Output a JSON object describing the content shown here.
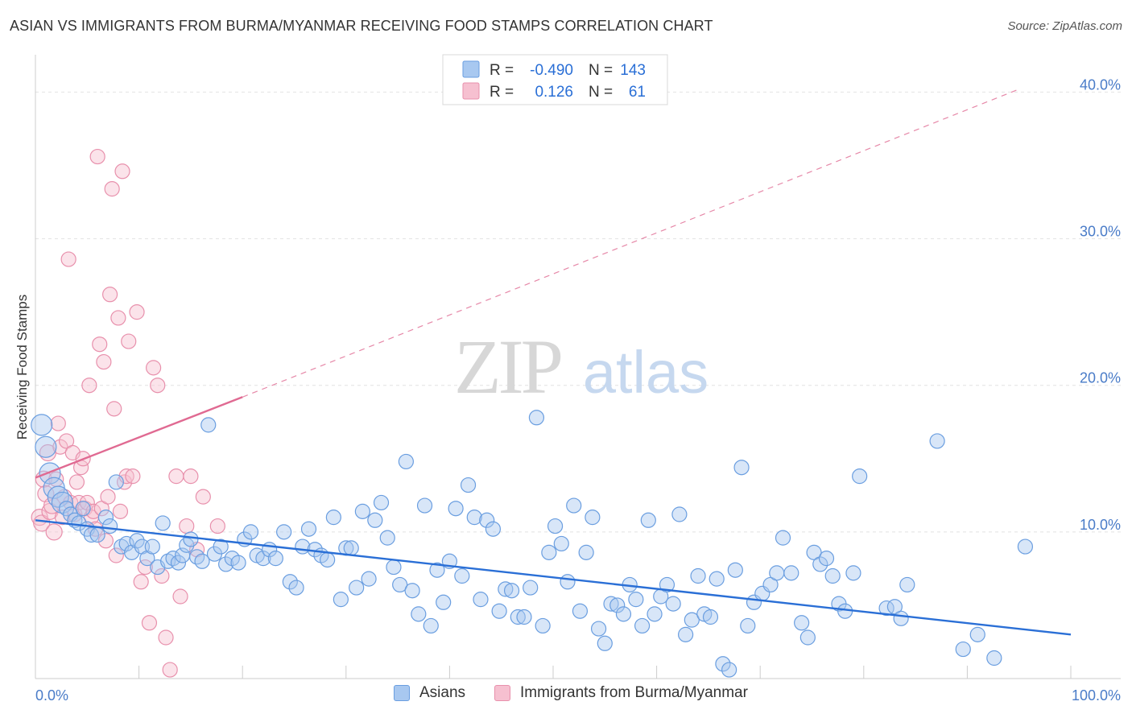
{
  "header": {
    "title": "ASIAN VS IMMIGRANTS FROM BURMA/MYANMAR RECEIVING FOOD STAMPS CORRELATION CHART",
    "source": "Source: ZipAtlas.com"
  },
  "watermark": {
    "zip": "ZIP",
    "atlas": "atlas"
  },
  "colors": {
    "blue_fill": "#a8c8f0",
    "blue_stroke": "#6a9ee0",
    "blue_line": "#2a6fd6",
    "pink_fill": "#f6c0d0",
    "pink_stroke": "#e890ac",
    "pink_line": "#e06a92",
    "tick_text": "#4a7cc8",
    "grid": "#e2e2e2"
  },
  "legend_box": {
    "rows": [
      {
        "r_label": "R =",
        "r_value": "-0.490",
        "n_label": "N =",
        "n_value": "143"
      },
      {
        "r_label": "R =",
        "r_value": "0.126",
        "n_label": "N =",
        "n_value": "61"
      }
    ]
  },
  "chart_data": {
    "type": "scatter",
    "title": "ASIAN VS IMMIGRANTS FROM BURMA/MYANMAR RECEIVING FOOD STAMPS CORRELATION CHART",
    "xlabel": "",
    "ylabel": "Receiving Food Stamps",
    "xlim": [
      0,
      100
    ],
    "ylim": [
      0,
      42
    ],
    "x_tick_labels": [
      "0.0%",
      "100.0%"
    ],
    "y_ticks": [
      10,
      20,
      30,
      40
    ],
    "y_tick_labels": [
      "10.0%",
      "20.0%",
      "30.0%",
      "40.0%"
    ],
    "grid": true,
    "legend": "top-center",
    "series": [
      {
        "name": "Asians",
        "color": "#a8c8f0",
        "points": [
          [
            0.6,
            17.3
          ],
          [
            1.0,
            15.8
          ],
          [
            1.4,
            14.0
          ],
          [
            1.8,
            13.0
          ],
          [
            2.2,
            12.4
          ],
          [
            2.6,
            12.0
          ],
          [
            3.0,
            11.6
          ],
          [
            3.4,
            11.2
          ],
          [
            3.8,
            10.8
          ],
          [
            4.2,
            10.6
          ],
          [
            4.6,
            11.6
          ],
          [
            5.0,
            10.2
          ],
          [
            5.4,
            9.8
          ],
          [
            6.0,
            9.8
          ],
          [
            6.8,
            11.0
          ],
          [
            7.2,
            10.4
          ],
          [
            7.8,
            13.4
          ],
          [
            8.3,
            9.0
          ],
          [
            8.8,
            9.2
          ],
          [
            9.3,
            8.6
          ],
          [
            9.8,
            9.4
          ],
          [
            10.3,
            9.0
          ],
          [
            10.8,
            8.2
          ],
          [
            11.3,
            9.0
          ],
          [
            11.8,
            7.6
          ],
          [
            12.3,
            10.6
          ],
          [
            12.8,
            8.0
          ],
          [
            13.3,
            8.2
          ],
          [
            13.8,
            7.9
          ],
          [
            14.2,
            8.4
          ],
          [
            14.6,
            9.1
          ],
          [
            15.0,
            9.5
          ],
          [
            15.6,
            8.3
          ],
          [
            16.1,
            8.0
          ],
          [
            16.7,
            17.3
          ],
          [
            17.3,
            8.5
          ],
          [
            17.9,
            9.0
          ],
          [
            18.4,
            7.8
          ],
          [
            19.0,
            8.2
          ],
          [
            19.6,
            7.9
          ],
          [
            20.2,
            9.5
          ],
          [
            20.8,
            10.0
          ],
          [
            21.4,
            8.4
          ],
          [
            22.0,
            8.2
          ],
          [
            22.6,
            8.8
          ],
          [
            23.2,
            8.2
          ],
          [
            24.0,
            10.0
          ],
          [
            24.6,
            6.6
          ],
          [
            25.2,
            6.2
          ],
          [
            25.8,
            9.0
          ],
          [
            26.4,
            10.2
          ],
          [
            27.0,
            8.8
          ],
          [
            27.6,
            8.4
          ],
          [
            28.2,
            8.1
          ],
          [
            28.8,
            11.0
          ],
          [
            29.5,
            5.4
          ],
          [
            30.0,
            8.9
          ],
          [
            30.5,
            8.9
          ],
          [
            31.0,
            6.2
          ],
          [
            31.6,
            11.4
          ],
          [
            32.2,
            6.8
          ],
          [
            32.8,
            10.8
          ],
          [
            33.4,
            12.0
          ],
          [
            34.0,
            9.6
          ],
          [
            34.6,
            7.6
          ],
          [
            35.2,
            6.4
          ],
          [
            35.8,
            14.8
          ],
          [
            36.4,
            6.0
          ],
          [
            37.0,
            4.4
          ],
          [
            37.6,
            11.8
          ],
          [
            38.2,
            3.6
          ],
          [
            38.8,
            7.4
          ],
          [
            39.4,
            5.2
          ],
          [
            40.0,
            8.0
          ],
          [
            40.6,
            11.6
          ],
          [
            41.2,
            7.0
          ],
          [
            41.8,
            13.2
          ],
          [
            42.4,
            11.0
          ],
          [
            43.0,
            5.4
          ],
          [
            43.6,
            10.8
          ],
          [
            44.2,
            10.2
          ],
          [
            44.8,
            4.6
          ],
          [
            45.4,
            6.1
          ],
          [
            46.0,
            6.0
          ],
          [
            46.6,
            4.2
          ],
          [
            47.2,
            4.2
          ],
          [
            47.8,
            6.2
          ],
          [
            48.4,
            17.8
          ],
          [
            49.0,
            3.6
          ],
          [
            49.6,
            8.6
          ],
          [
            50.2,
            10.4
          ],
          [
            50.8,
            9.2
          ],
          [
            51.4,
            6.6
          ],
          [
            52.0,
            11.8
          ],
          [
            52.6,
            4.6
          ],
          [
            53.2,
            8.6
          ],
          [
            53.8,
            11.0
          ],
          [
            54.4,
            3.4
          ],
          [
            55.0,
            2.4
          ],
          [
            55.6,
            5.1
          ],
          [
            56.2,
            5.0
          ],
          [
            56.8,
            4.4
          ],
          [
            57.4,
            6.4
          ],
          [
            58.0,
            5.4
          ],
          [
            58.6,
            3.6
          ],
          [
            59.2,
            10.8
          ],
          [
            59.8,
            4.4
          ],
          [
            60.4,
            5.6
          ],
          [
            61.0,
            6.4
          ],
          [
            61.6,
            5.1
          ],
          [
            62.2,
            11.2
          ],
          [
            62.8,
            3.0
          ],
          [
            63.4,
            4.0
          ],
          [
            64.0,
            7.0
          ],
          [
            64.6,
            4.4
          ],
          [
            65.2,
            4.2
          ],
          [
            65.8,
            6.8
          ],
          [
            66.4,
            1.0
          ],
          [
            67.0,
            0.6
          ],
          [
            67.6,
            7.4
          ],
          [
            68.2,
            14.4
          ],
          [
            68.8,
            3.6
          ],
          [
            69.4,
            5.2
          ],
          [
            70.2,
            5.8
          ],
          [
            71.0,
            6.4
          ],
          [
            71.6,
            7.2
          ],
          [
            72.2,
            9.6
          ],
          [
            73.0,
            7.2
          ],
          [
            74.0,
            3.8
          ],
          [
            74.6,
            2.8
          ],
          [
            75.2,
            8.6
          ],
          [
            75.8,
            7.8
          ],
          [
            76.4,
            8.2
          ],
          [
            77.0,
            7.0
          ],
          [
            77.6,
            5.1
          ],
          [
            78.2,
            4.6
          ],
          [
            79.0,
            7.2
          ],
          [
            79.6,
            13.8
          ],
          [
            82.2,
            4.8
          ],
          [
            83.0,
            4.9
          ],
          [
            83.6,
            4.1
          ],
          [
            84.2,
            6.4
          ],
          [
            87.1,
            16.2
          ],
          [
            89.6,
            2.0
          ],
          [
            91.0,
            3.0
          ],
          [
            92.6,
            1.4
          ],
          [
            95.6,
            9.0
          ]
        ]
      },
      {
        "name": "Immigrants from Burma/Myanmar",
        "color": "#f6c0d0",
        "points": [
          [
            0.4,
            11.0
          ],
          [
            0.6,
            10.6
          ],
          [
            0.8,
            13.6
          ],
          [
            1.0,
            12.6
          ],
          [
            1.2,
            15.4
          ],
          [
            1.4,
            11.4
          ],
          [
            1.6,
            11.8
          ],
          [
            1.8,
            10.0
          ],
          [
            2.0,
            13.6
          ],
          [
            2.2,
            17.4
          ],
          [
            2.4,
            15.8
          ],
          [
            2.6,
            11.0
          ],
          [
            2.8,
            12.4
          ],
          [
            3.0,
            16.2
          ],
          [
            3.2,
            28.6
          ],
          [
            3.4,
            12.0
          ],
          [
            3.6,
            15.4
          ],
          [
            3.8,
            11.2
          ],
          [
            4.0,
            13.4
          ],
          [
            4.2,
            12.0
          ],
          [
            4.4,
            14.4
          ],
          [
            4.6,
            15.0
          ],
          [
            4.8,
            11.6
          ],
          [
            5.0,
            12.0
          ],
          [
            5.2,
            20.0
          ],
          [
            5.4,
            11.0
          ],
          [
            5.6,
            11.4
          ],
          [
            5.8,
            10.2
          ],
          [
            6.0,
            35.6
          ],
          [
            6.2,
            22.8
          ],
          [
            6.4,
            11.6
          ],
          [
            6.6,
            21.6
          ],
          [
            6.8,
            9.4
          ],
          [
            7.0,
            12.4
          ],
          [
            7.2,
            26.2
          ],
          [
            7.4,
            33.4
          ],
          [
            7.6,
            18.4
          ],
          [
            7.8,
            8.4
          ],
          [
            8.0,
            24.6
          ],
          [
            8.2,
            11.4
          ],
          [
            8.4,
            34.6
          ],
          [
            8.6,
            13.4
          ],
          [
            8.8,
            13.8
          ],
          [
            9.0,
            23.0
          ],
          [
            9.4,
            13.8
          ],
          [
            9.8,
            25.0
          ],
          [
            10.2,
            6.6
          ],
          [
            10.6,
            7.6
          ],
          [
            11.0,
            3.8
          ],
          [
            11.4,
            21.2
          ],
          [
            11.8,
            20.0
          ],
          [
            12.2,
            7.0
          ],
          [
            12.6,
            2.8
          ],
          [
            13.0,
            0.6
          ],
          [
            13.6,
            13.8
          ],
          [
            14.0,
            5.6
          ],
          [
            14.6,
            10.4
          ],
          [
            15.0,
            13.8
          ],
          [
            15.6,
            8.8
          ],
          [
            16.2,
            12.4
          ],
          [
            17.6,
            10.4
          ]
        ]
      }
    ],
    "trend_lines": [
      {
        "series": "Asians",
        "x": [
          0,
          100
        ],
        "y": [
          10.8,
          3.0
        ]
      },
      {
        "series": "Immigrants from Burma/Myanmar",
        "solid_x": [
          0,
          20
        ],
        "solid_y": [
          13.7,
          19.2
        ],
        "dashed_x": [
          20,
          95
        ],
        "dashed_y": [
          19.2,
          40.2
        ]
      }
    ]
  }
}
